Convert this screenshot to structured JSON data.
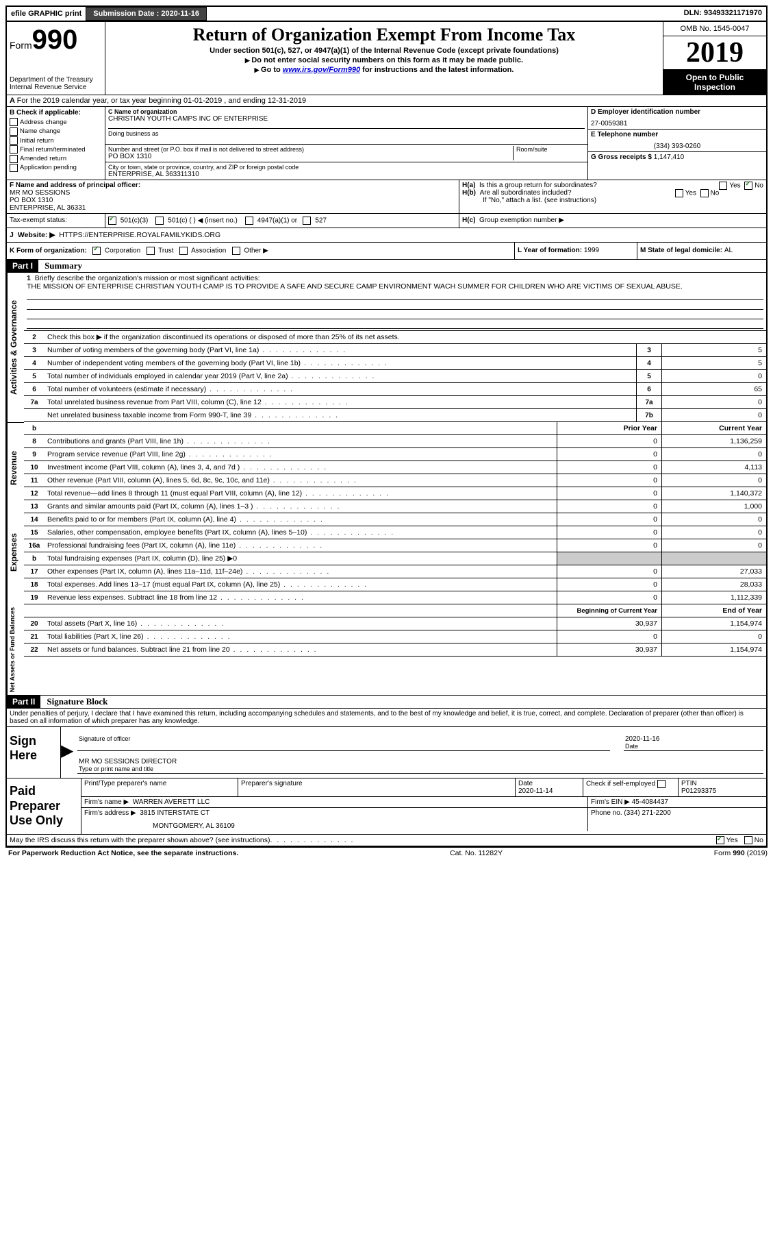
{
  "topbar": {
    "efile": "efile GRAPHIC print",
    "submission_label": "Submission Date : ",
    "submission_date": "2020-11-16",
    "dln_label": "DLN: ",
    "dln": "93493321171970"
  },
  "header": {
    "form_word": "Form",
    "form_num": "990",
    "dept1": "Department of the Treasury",
    "dept2": "Internal Revenue Service",
    "title": "Return of Organization Exempt From Income Tax",
    "sub1": "Under section 501(c), 527, or 4947(a)(1) of the Internal Revenue Code (except private foundations)",
    "sub2": "Do not enter social security numbers on this form as it may be made public.",
    "sub3a": "Go to ",
    "sub3link": "www.irs.gov/Form990",
    "sub3b": " for instructions and the latest information.",
    "omb": "OMB No. 1545-0047",
    "year": "2019",
    "open1": "Open to Public",
    "open2": "Inspection"
  },
  "lineA": "For the 2019 calendar year, or tax year beginning 01-01-2019   , and ending 12-31-2019",
  "colB": {
    "title": "B Check if applicable:",
    "items": [
      "Address change",
      "Name change",
      "Initial return",
      "Final return/terminated",
      "Amended return",
      "Application pending"
    ]
  },
  "colC": {
    "name_label": "C Name of organization",
    "name": "CHRISTIAN YOUTH CAMPS INC OF ENTERPRISE",
    "dba_label": "Doing business as",
    "addr_label": "Number and street (or P.O. box if mail is not delivered to street address)",
    "room_label": "Room/suite",
    "addr": "PO BOX 1310",
    "city_label": "City or town, state or province, country, and ZIP or foreign postal code",
    "city": "ENTERPRISE, AL  363311310"
  },
  "colD": {
    "ein_label": "D Employer identification number",
    "ein": "27-0059381",
    "phone_label": "E Telephone number",
    "phone": "(334) 393-0260",
    "gross_label": "G Gross receipts $ ",
    "gross": "1,147,410"
  },
  "rowF": {
    "label": "F  Name and address of principal officer:",
    "name": "MR MO SESSIONS",
    "addr1": "PO BOX 1310",
    "addr2": "ENTERPRISE, AL  36331"
  },
  "rowH": {
    "ha": "Is this a group return for subordinates?",
    "hb": "Are all subordinates included?",
    "hnote": "If \"No,\" attach a list. (see instructions)",
    "hc": "Group exemption number ▶",
    "yes": "Yes",
    "no": "No"
  },
  "taxexempt": {
    "label": "Tax-exempt status:",
    "opt1": "501(c)(3)",
    "opt2": "501(c) (  ) ◀ (insert no.)",
    "opt3": "4947(a)(1) or",
    "opt4": "527"
  },
  "rowJ": {
    "label": "Website: ▶",
    "url": "HTTPS://ENTERPRISE.ROYALFAMILYKIDS.ORG"
  },
  "rowK": {
    "label": "K Form of organization:",
    "opts": [
      "Corporation",
      "Trust",
      "Association",
      "Other ▶"
    ],
    "l_label": "L Year of formation: ",
    "l_val": "1999",
    "m_label": "M State of legal domicile: ",
    "m_val": "AL"
  },
  "part1": {
    "header": "Part I",
    "title": "Summary",
    "line1_label": "Briefly describe the organization's mission or most significant activities:",
    "mission": "THE MISSION OF ENTERPRISE CHRISTIAN YOUTH CAMP IS TO PROVIDE A SAFE AND SECURE CAMP ENVIRONMENT WACH SUMMER FOR CHILDREN WHO ARE VICTIMS OF SEXUAL ABUSE.",
    "line2": "Check this box ▶        if the organization discontinued its operations or disposed of more than 25% of its net assets.",
    "gov_label": "Activities & Governance",
    "rev_label": "Revenue",
    "exp_label": "Expenses",
    "net_label": "Net Assets or Fund Balances",
    "lines_gov": [
      {
        "n": "3",
        "d": "Number of voting members of the governing body (Part VI, line 1a)",
        "box": "3",
        "v": "5"
      },
      {
        "n": "4",
        "d": "Number of independent voting members of the governing body (Part VI, line 1b)",
        "box": "4",
        "v": "5"
      },
      {
        "n": "5",
        "d": "Total number of individuals employed in calendar year 2019 (Part V, line 2a)",
        "box": "5",
        "v": "0"
      },
      {
        "n": "6",
        "d": "Total number of volunteers (estimate if necessary)",
        "box": "6",
        "v": "65"
      },
      {
        "n": "7a",
        "d": "Total unrelated business revenue from Part VIII, column (C), line 12",
        "box": "7a",
        "v": "0"
      },
      {
        "n": "",
        "d": "Net unrelated business taxable income from Form 990-T, line 39",
        "box": "7b",
        "v": "0"
      }
    ],
    "prior_hdr": "Prior Year",
    "current_hdr": "Current Year",
    "lines_rev": [
      {
        "n": "8",
        "d": "Contributions and grants (Part VIII, line 1h)",
        "p": "0",
        "c": "1,136,259"
      },
      {
        "n": "9",
        "d": "Program service revenue (Part VIII, line 2g)",
        "p": "0",
        "c": "0"
      },
      {
        "n": "10",
        "d": "Investment income (Part VIII, column (A), lines 3, 4, and 7d )",
        "p": "0",
        "c": "4,113"
      },
      {
        "n": "11",
        "d": "Other revenue (Part VIII, column (A), lines 5, 6d, 8c, 9c, 10c, and 11e)",
        "p": "0",
        "c": "0"
      },
      {
        "n": "12",
        "d": "Total revenue—add lines 8 through 11 (must equal Part VIII, column (A), line 12)",
        "p": "0",
        "c": "1,140,372"
      }
    ],
    "lines_exp": [
      {
        "n": "13",
        "d": "Grants and similar amounts paid (Part IX, column (A), lines 1–3 )",
        "p": "0",
        "c": "1,000"
      },
      {
        "n": "14",
        "d": "Benefits paid to or for members (Part IX, column (A), line 4)",
        "p": "0",
        "c": "0"
      },
      {
        "n": "15",
        "d": "Salaries, other compensation, employee benefits (Part IX, column (A), lines 5–10)",
        "p": "0",
        "c": "0"
      },
      {
        "n": "16a",
        "d": "Professional fundraising fees (Part IX, column (A), line 11e)",
        "p": "0",
        "c": "0"
      },
      {
        "n": "b",
        "d": "Total fundraising expenses (Part IX, column (D), line 25) ▶0",
        "p": "",
        "c": "",
        "shaded": true
      },
      {
        "n": "17",
        "d": "Other expenses (Part IX, column (A), lines 11a–11d, 11f–24e)",
        "p": "0",
        "c": "27,033"
      },
      {
        "n": "18",
        "d": "Total expenses. Add lines 13–17 (must equal Part IX, column (A), line 25)",
        "p": "0",
        "c": "28,033"
      },
      {
        "n": "19",
        "d": "Revenue less expenses. Subtract line 18 from line 12",
        "p": "0",
        "c": "1,112,339"
      }
    ],
    "begin_hdr": "Beginning of Current Year",
    "end_hdr": "End of Year",
    "lines_net": [
      {
        "n": "20",
        "d": "Total assets (Part X, line 16)",
        "p": "30,937",
        "c": "1,154,974"
      },
      {
        "n": "21",
        "d": "Total liabilities (Part X, line 26)",
        "p": "0",
        "c": "0"
      },
      {
        "n": "22",
        "d": "Net assets or fund balances. Subtract line 21 from line 20",
        "p": "30,937",
        "c": "1,154,974"
      }
    ]
  },
  "part2": {
    "header": "Part II",
    "title": "Signature Block",
    "declaration": "Under penalties of perjury, I declare that I have examined this return, including accompanying schedules and statements, and to the best of my knowledge and belief, it is true, correct, and complete. Declaration of preparer (other than officer) is based on all information of which preparer has any knowledge."
  },
  "sign": {
    "label": "Sign Here",
    "sig_label": "Signature of officer",
    "date_label": "Date",
    "date": "2020-11-16",
    "name": "MR MO SESSIONS  DIRECTOR",
    "name_label": "Type or print name and title"
  },
  "preparer": {
    "label": "Paid Preparer Use Only",
    "print_label": "Print/Type preparer's name",
    "sig_label": "Preparer's signature",
    "date_label": "Date",
    "date": "2020-11-14",
    "check_label": "Check         if self-employed",
    "ptin_label": "PTIN",
    "ptin": "P01293375",
    "firm_label": "Firm's name      ▶",
    "firm": "WARREN AVERETT LLC",
    "ein_label": "Firm's EIN ▶ ",
    "ein": "45-4084437",
    "addr_label": "Firm's address ▶",
    "addr1": "3815 INTERSTATE CT",
    "addr2": "MONTGOMERY, AL  36109",
    "phone_label": "Phone no. ",
    "phone": "(334) 271-2200"
  },
  "footer": {
    "discuss": "May the IRS discuss this return with the preparer shown above? (see instructions)",
    "yes": "Yes",
    "no": "No",
    "paperwork": "For Paperwork Reduction Act Notice, see the separate instructions.",
    "cat": "Cat. No. 11282Y",
    "form": "Form 990 (2019)"
  }
}
